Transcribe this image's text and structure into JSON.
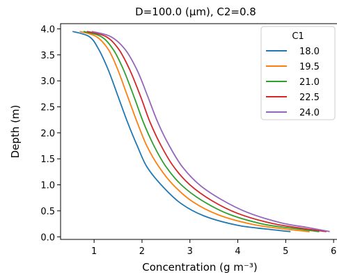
{
  "chart_data": {
    "type": "line",
    "title": "D=100.0 (μm), C2=0.8",
    "xlabel": "Concentration (g m⁻³)",
    "ylabel": "Depth (m)",
    "xlim": [
      0.3,
      6.1
    ],
    "ylim": [
      -0.05,
      4.1
    ],
    "xticks": [
      1,
      2,
      3,
      4,
      5,
      6
    ],
    "yticks": [
      0.0,
      0.5,
      1.0,
      1.5,
      2.0,
      2.5,
      3.0,
      3.5,
      4.0
    ],
    "ytick_labels": [
      "0.0",
      "0.5",
      "1.0",
      "1.5",
      "2.0",
      "2.5",
      "3.0",
      "3.5",
      "4.0"
    ],
    "grid": false,
    "legend": {
      "title": "C1",
      "placement": "top-right"
    },
    "series": [
      {
        "name": "18.0",
        "color": "#1f77b4",
        "points": [
          [
            0.55,
            3.95
          ],
          [
            0.9,
            3.85
          ],
          [
            1.1,
            3.6
          ],
          [
            1.3,
            3.2
          ],
          [
            1.5,
            2.7
          ],
          [
            1.7,
            2.2
          ],
          [
            1.9,
            1.75
          ],
          [
            2.1,
            1.35
          ],
          [
            2.4,
            1.0
          ],
          [
            2.8,
            0.65
          ],
          [
            3.3,
            0.4
          ],
          [
            4.0,
            0.22
          ],
          [
            4.6,
            0.15
          ],
          [
            5.1,
            0.1
          ]
        ]
      },
      {
        "name": "19.5",
        "color": "#ff7f0e",
        "points": [
          [
            0.7,
            3.95
          ],
          [
            1.05,
            3.85
          ],
          [
            1.3,
            3.6
          ],
          [
            1.5,
            3.2
          ],
          [
            1.7,
            2.7
          ],
          [
            1.9,
            2.2
          ],
          [
            2.1,
            1.75
          ],
          [
            2.35,
            1.35
          ],
          [
            2.65,
            1.0
          ],
          [
            3.05,
            0.68
          ],
          [
            3.6,
            0.42
          ],
          [
            4.3,
            0.24
          ],
          [
            4.9,
            0.16
          ],
          [
            5.5,
            0.1
          ]
        ]
      },
      {
        "name": "21.0",
        "color": "#2ca02c",
        "points": [
          [
            0.78,
            3.95
          ],
          [
            1.15,
            3.85
          ],
          [
            1.4,
            3.6
          ],
          [
            1.62,
            3.2
          ],
          [
            1.83,
            2.7
          ],
          [
            2.03,
            2.2
          ],
          [
            2.25,
            1.75
          ],
          [
            2.5,
            1.35
          ],
          [
            2.82,
            1.0
          ],
          [
            3.25,
            0.7
          ],
          [
            3.8,
            0.44
          ],
          [
            4.5,
            0.25
          ],
          [
            5.1,
            0.17
          ],
          [
            5.7,
            0.1
          ]
        ]
      },
      {
        "name": "22.5",
        "color": "#d62728",
        "points": [
          [
            0.85,
            3.95
          ],
          [
            1.25,
            3.85
          ],
          [
            1.52,
            3.6
          ],
          [
            1.75,
            3.2
          ],
          [
            1.97,
            2.7
          ],
          [
            2.17,
            2.2
          ],
          [
            2.4,
            1.75
          ],
          [
            2.66,
            1.35
          ],
          [
            3.0,
            1.0
          ],
          [
            3.45,
            0.7
          ],
          [
            4.0,
            0.45
          ],
          [
            4.7,
            0.26
          ],
          [
            5.3,
            0.17
          ],
          [
            5.85,
            0.1
          ]
        ]
      },
      {
        "name": "24.0",
        "color": "#9467bd",
        "points": [
          [
            0.95,
            3.95
          ],
          [
            1.35,
            3.85
          ],
          [
            1.65,
            3.6
          ],
          [
            1.9,
            3.2
          ],
          [
            2.12,
            2.7
          ],
          [
            2.33,
            2.2
          ],
          [
            2.57,
            1.75
          ],
          [
            2.84,
            1.35
          ],
          [
            3.2,
            1.0
          ],
          [
            3.65,
            0.72
          ],
          [
            4.2,
            0.47
          ],
          [
            4.9,
            0.27
          ],
          [
            5.45,
            0.18
          ],
          [
            5.92,
            0.1
          ]
        ]
      }
    ]
  }
}
